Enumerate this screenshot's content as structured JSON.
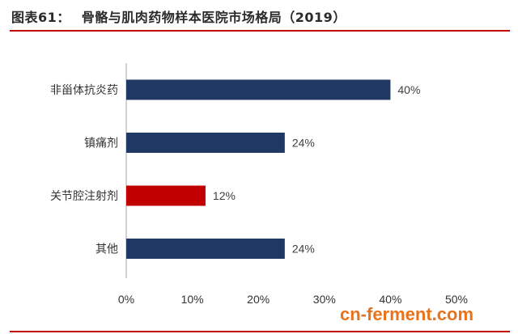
{
  "figure": {
    "number_label": "图表61：",
    "title": "骨骼与肌肉药物样本医院市场格局（2019）"
  },
  "watermark": "cn-ferment.com",
  "colors": {
    "title_rule": "#c00000",
    "bar_default": "#1f3864",
    "bar_highlight": "#c00000"
  },
  "chart_data": {
    "type": "bar",
    "orientation": "horizontal",
    "categories": [
      "非甾体抗炎药",
      "镇痛剂",
      "关节腔注射剂",
      "其他"
    ],
    "values": [
      40,
      24,
      12,
      24
    ],
    "value_labels": [
      "40%",
      "24%",
      "12%",
      "24%"
    ],
    "highlight_index": 2,
    "xlim": [
      0,
      50
    ],
    "xticks": [
      0,
      10,
      20,
      30,
      40,
      50
    ],
    "xtick_labels": [
      "0%",
      "10%",
      "20%",
      "30%",
      "40%",
      "50%"
    ],
    "xlabel": "",
    "ylabel": "",
    "grid": false
  }
}
